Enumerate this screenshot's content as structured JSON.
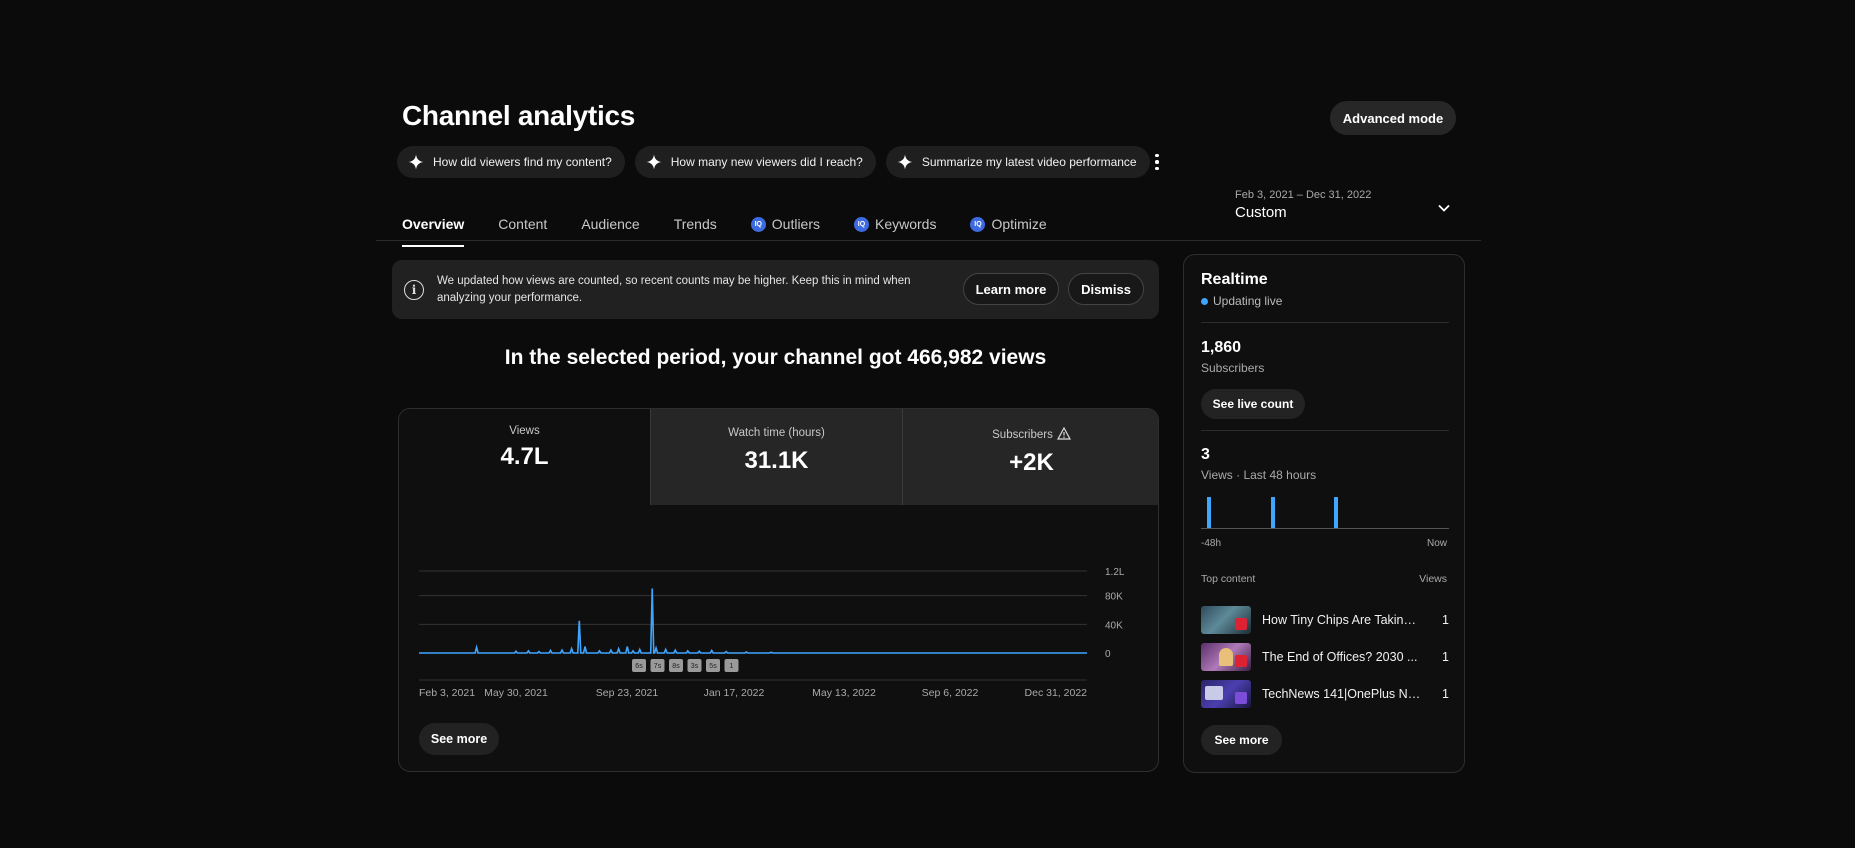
{
  "header": {
    "title": "Channel analytics",
    "advanced_mode_label": "Advanced mode",
    "chips": [
      {
        "label": "How did viewers find my content?",
        "icon": "sparkle-icon"
      },
      {
        "label": "How many new viewers did I reach?",
        "icon": "sparkle-icon"
      },
      {
        "label": "Summarize my latest video performance",
        "icon": "sparkle-icon"
      }
    ]
  },
  "tabs": [
    {
      "label": "Overview",
      "active": true,
      "iq": false
    },
    {
      "label": "Content",
      "active": false,
      "iq": false
    },
    {
      "label": "Audience",
      "active": false,
      "iq": false
    },
    {
      "label": "Trends",
      "active": false,
      "iq": false
    },
    {
      "label": "Outliers",
      "active": false,
      "iq": true
    },
    {
      "label": "Keywords",
      "active": false,
      "iq": true
    },
    {
      "label": "Optimize",
      "active": false,
      "iq": true
    }
  ],
  "iq_badge_text": "IQ",
  "date_range": {
    "range": "Feb 3, 2021 – Dec 31, 2022",
    "preset": "Custom"
  },
  "notice": {
    "text": "We updated how views are counted, so recent counts may be higher. Keep this in mind when analyzing your performance.",
    "learn_more": "Learn more",
    "dismiss": "Dismiss"
  },
  "headline": "In the selected period, your channel got 466,982 views",
  "metrics": [
    {
      "label": "Views",
      "value": "4.7L",
      "selected": true
    },
    {
      "label": "Watch time (hours)",
      "value": "31.1K",
      "selected": false
    },
    {
      "label": "Subscribers",
      "value": "+2K",
      "selected": false,
      "warning": true
    }
  ],
  "chart_data": {
    "type": "line",
    "series": [
      {
        "values": [
          0,
          0,
          0,
          0,
          0,
          0,
          0,
          0,
          0,
          0,
          0,
          0,
          0,
          0,
          0,
          0,
          0,
          0,
          0,
          0,
          0,
          0,
          0,
          0,
          0,
          0,
          0,
          0,
          0,
          0,
          0,
          0,
          0,
          0,
          0,
          0,
          0,
          0,
          0,
          0,
          0,
          0,
          0,
          0,
          0,
          0,
          0,
          0,
          0,
          0,
          0,
          0,
          0,
          0,
          0,
          0,
          0,
          0,
          0,
          0,
          0,
          0,
          0,
          0,
          0,
          0,
          0,
          0,
          0,
          0,
          0,
          0,
          0,
          0,
          0,
          0,
          0,
          0,
          0,
          0,
          0,
          0,
          0,
          0,
          0,
          0,
          0,
          0,
          0,
          0,
          0,
          0,
          0,
          0,
          0,
          0,
          0,
          0,
          0,
          0,
          0,
          0,
          0,
          0,
          0,
          0,
          0,
          0,
          0,
          0,
          0,
          0,
          0,
          0,
          0,
          0,
          0,
          0,
          0,
          0,
          0,
          0,
          0,
          0,
          0,
          0,
          0,
          0,
          0,
          0,
          0,
          0,
          0,
          0,
          0,
          0,
          0,
          0,
          0,
          0,
          0,
          0,
          0,
          0,
          0,
          0,
          0,
          0,
          0,
          0,
          0,
          0,
          0,
          0,
          0,
          0,
          0,
          0,
          0,
          0,
          0,
          0,
          0,
          0,
          0,
          0,
          0,
          0,
          0,
          0,
          0,
          0,
          0,
          0,
          0,
          0,
          0,
          0,
          0,
          0,
          0,
          0,
          0,
          0,
          0,
          0,
          0,
          0,
          0,
          0,
          0,
          0,
          0,
          0,
          0,
          0,
          0,
          0,
          0,
          0,
          0,
          0,
          0,
          0,
          0,
          0,
          0,
          0,
          0,
          0,
          0,
          0,
          0,
          0,
          0,
          0,
          0,
          0,
          0,
          0,
          0,
          0,
          0,
          0,
          0,
          0,
          0,
          0,
          0,
          0,
          0,
          0,
          0,
          0,
          0,
          0,
          0,
          0,
          0,
          0,
          0,
          0,
          0,
          0,
          0,
          0,
          0,
          0,
          0,
          0,
          0,
          0,
          0,
          0,
          0,
          0,
          0,
          0,
          0,
          0,
          0,
          0,
          0,
          0,
          0,
          0,
          0,
          0,
          0,
          0,
          0,
          0,
          0,
          0,
          0,
          0,
          0,
          0,
          0,
          0,
          0,
          0,
          0,
          0,
          0,
          0,
          0,
          0,
          0,
          0,
          0,
          0,
          0,
          0,
          0,
          0,
          0,
          0,
          0,
          0,
          0,
          0,
          0,
          0,
          0,
          0,
          0,
          0,
          0,
          0,
          0,
          0,
          0,
          0,
          0,
          0,
          0,
          0,
          0,
          0,
          0,
          0,
          0,
          0,
          0,
          0,
          0,
          0,
          0,
          0,
          0,
          0,
          0,
          0,
          0,
          0,
          0,
          0,
          0,
          0,
          0,
          0,
          0,
          0,
          0,
          0,
          0,
          0,
          0,
          0,
          0,
          0,
          0,
          0,
          0,
          0,
          0,
          0,
          0,
          0,
          0,
          0,
          0,
          0,
          0,
          0,
          0,
          0,
          0,
          0,
          0,
          0,
          0,
          0,
          0,
          0,
          0,
          0,
          0,
          0,
          0,
          0,
          0,
          0,
          0,
          0,
          0,
          0,
          0,
          0,
          0,
          0,
          0,
          0,
          0,
          0,
          0,
          0,
          0,
          0,
          0,
          0,
          0,
          0,
          0,
          0,
          0,
          0,
          0,
          0,
          0,
          0,
          0,
          0,
          0,
          0,
          0,
          0,
          0,
          0,
          0,
          0,
          0,
          0,
          0,
          0,
          0,
          0,
          0,
          0,
          0,
          0,
          0,
          0,
          0,
          0,
          0,
          0,
          0,
          0,
          0,
          0,
          0,
          0,
          0,
          0,
          0,
          0,
          0,
          0,
          0,
          0,
          0,
          0,
          0,
          0,
          0,
          0,
          0,
          0,
          0,
          0,
          0,
          0,
          0,
          0,
          0,
          0,
          0,
          0,
          0,
          0,
          0,
          0,
          0,
          0,
          0,
          0,
          0,
          0,
          0,
          0,
          0,
          0,
          0,
          0,
          0,
          0,
          0,
          0,
          0,
          0,
          0,
          0,
          0,
          0,
          0,
          0,
          0,
          0,
          0,
          0,
          0,
          0,
          0,
          0,
          0,
          0,
          0,
          0,
          0,
          0,
          0,
          0,
          0,
          0,
          0,
          0,
          0,
          0,
          0,
          0,
          0,
          0,
          0,
          0,
          0,
          0,
          0,
          0,
          0,
          0,
          0,
          0,
          0,
          0,
          0,
          0,
          0,
          0,
          0,
          0,
          0,
          0,
          0,
          0,
          0,
          0,
          0,
          0,
          0,
          0,
          0,
          0,
          0,
          0,
          0,
          0,
          0,
          0,
          0,
          0,
          0,
          0,
          0,
          0,
          0,
          0,
          0,
          0,
          0,
          0,
          0,
          0,
          0,
          0,
          0,
          0,
          0,
          0,
          0,
          0,
          0,
          0,
          0,
          0,
          0,
          0,
          0,
          0,
          0,
          0,
          0,
          0,
          0,
          0,
          0,
          0,
          0,
          0,
          0,
          0,
          0,
          0,
          0,
          0,
          0,
          0,
          0,
          0,
          0,
          0,
          0,
          0,
          0,
          0,
          0,
          0,
          0,
          0,
          0,
          0,
          0,
          0,
          0,
          0,
          0,
          0,
          0,
          0,
          0,
          0,
          0,
          0,
          0,
          0,
          0,
          0,
          0,
          0,
          0,
          0,
          0,
          0,
          0,
          0,
          0,
          0,
          0,
          0,
          0,
          0,
          0,
          0,
          0,
          0,
          0,
          0,
          0,
          0,
          0,
          0,
          0,
          0,
          0,
          0,
          0,
          0,
          0,
          0,
          0,
          0,
          0,
          0,
          0,
          0,
          0,
          0,
          0,
          0,
          0,
          0,
          0,
          0,
          0,
          0,
          0,
          0,
          0,
          0,
          0,
          0,
          0,
          0,
          0,
          0,
          0,
          0,
          0,
          0,
          0,
          0,
          0,
          0,
          0,
          0,
          0,
          0,
          0,
          0,
          0,
          0,
          0,
          0,
          0,
          0,
          0,
          0,
          0,
          0,
          0,
          0,
          0,
          0,
          0,
          0,
          0,
          0,
          0,
          0,
          0,
          0,
          0,
          0,
          0,
          0,
          0,
          0,
          0,
          0,
          0,
          0,
          0,
          0,
          0,
          0,
          0,
          0,
          0,
          0,
          0,
          0,
          0,
          0,
          0,
          0,
          0,
          0,
          0,
          0,
          0,
          0,
          0,
          0,
          0,
          0,
          0,
          0,
          0,
          0,
          0,
          0,
          0,
          0,
          0,
          0,
          0,
          0,
          0,
          0,
          0,
          0,
          0,
          0,
          0,
          0,
          0,
          0,
          0,
          0,
          0,
          0,
          0,
          0,
          0,
          0,
          0,
          0,
          0,
          0,
          0,
          0,
          0,
          0,
          0,
          0,
          0,
          0,
          0,
          0,
          0,
          0,
          0,
          0,
          0,
          0,
          0,
          0,
          0,
          0,
          0,
          0,
          0,
          0,
          0,
          0,
          0,
          0,
          0,
          0,
          0,
          0,
          0,
          0,
          0,
          0,
          0,
          0,
          0,
          0,
          0,
          0,
          0,
          0,
          0,
          0,
          0,
          0,
          0,
          0,
          0,
          0,
          0,
          0,
          0,
          0,
          0,
          0,
          0,
          0,
          0,
          0,
          0,
          0,
          0,
          0,
          0,
          0,
          0,
          0,
          0,
          0,
          0,
          0,
          0
        ]
      }
    ],
    "spikes": [
      {
        "date": "2021-04-04",
        "value": 8000
      },
      {
        "date": "2021-05-15",
        "value": 2500
      },
      {
        "date": "2021-05-28",
        "value": 3000
      },
      {
        "date": "2021-06-08",
        "value": 2000
      },
      {
        "date": "2021-06-20",
        "value": 3500
      },
      {
        "date": "2021-07-02",
        "value": 4000
      },
      {
        "date": "2021-07-12",
        "value": 6000
      },
      {
        "date": "2021-07-20",
        "value": 45000
      },
      {
        "date": "2021-07-26",
        "value": 9000
      },
      {
        "date": "2021-08-10",
        "value": 3000
      },
      {
        "date": "2021-08-22",
        "value": 4000
      },
      {
        "date": "2021-08-30",
        "value": 6000
      },
      {
        "date": "2021-09-08",
        "value": 9000
      },
      {
        "date": "2021-09-14",
        "value": 3000
      },
      {
        "date": "2021-09-21",
        "value": 5000
      },
      {
        "date": "2021-10-04",
        "value": 90000
      },
      {
        "date": "2021-10-08",
        "value": 7000
      },
      {
        "date": "2021-10-18",
        "value": 5000
      },
      {
        "date": "2021-10-28",
        "value": 4000
      },
      {
        "date": "2021-11-10",
        "value": 3000
      },
      {
        "date": "2021-11-22",
        "value": 2500
      },
      {
        "date": "2021-12-05",
        "value": 3500
      },
      {
        "date": "2021-12-20",
        "value": 2000
      },
      {
        "date": "2022-01-10",
        "value": 1500
      },
      {
        "date": "2022-02-05",
        "value": 1000
      }
    ],
    "x_ticks": [
      "Feb 3, 2021",
      "May 30, 2021",
      "Sep 23, 2021",
      "Jan 17, 2022",
      "May 13, 2022",
      "Sep 6, 2022",
      "Dec 31, 2022"
    ],
    "y_ticks": [
      "0",
      "40K",
      "80K",
      "1.2L"
    ],
    "ylim": [
      0,
      120000
    ],
    "x_range": [
      "2021-02-03",
      "2022-12-31"
    ],
    "grid": true,
    "line_color": "#3ea6ff"
  },
  "chart_markers": [
    "6s",
    "7s",
    "8s",
    "3s",
    "5s",
    "1"
  ],
  "see_more": "See more",
  "realtime": {
    "title": "Realtime",
    "live": "Updating live",
    "subscribers_value": "1,860",
    "subscribers_label": "Subscribers",
    "see_live_count": "See live count",
    "views_value": "3",
    "views_label": "Views · Last 48 hours",
    "axis_start": "-48h",
    "axis_end": "Now",
    "bars": [
      1,
      1,
      1
    ],
    "top_content_label": "Top content",
    "views_col_label": "Views",
    "top_content": [
      {
        "title": "How Tiny Chips Are Taking ...",
        "views": "1"
      },
      {
        "title": "The End of Offices? 2030 ...",
        "views": "1"
      },
      {
        "title": "TechNews 141|OnePlus No...",
        "views": "1"
      }
    ],
    "see_more": "See more"
  },
  "colors": {
    "background": "#0b0b0b",
    "card": "#0f0f0f",
    "accent_line": "#3ea6ff",
    "iq_badge": "#3d6ae0"
  }
}
